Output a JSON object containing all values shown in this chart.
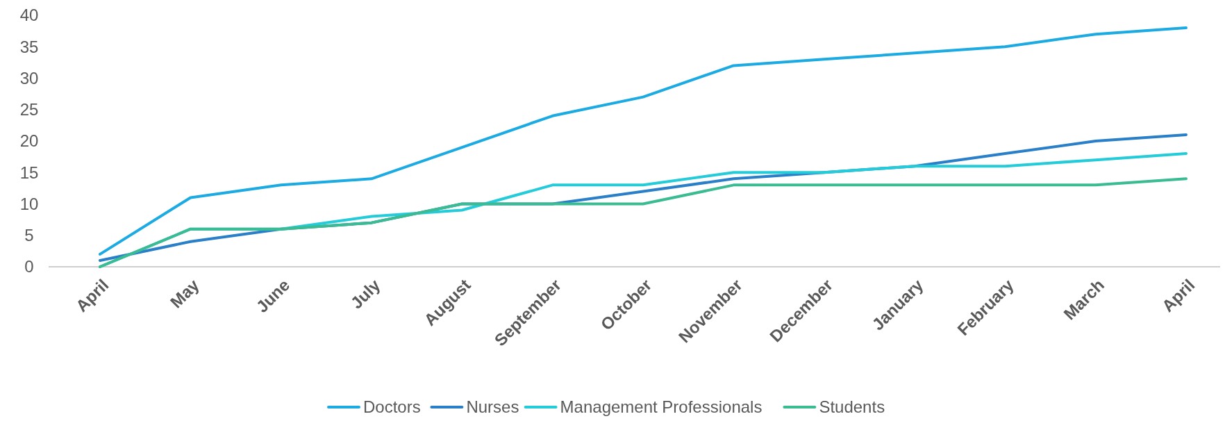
{
  "chart_data": {
    "type": "line",
    "categories": [
      "April",
      "May",
      "June",
      "July",
      "August",
      "September",
      "October",
      "November",
      "December",
      "January",
      "February",
      "March",
      "April"
    ],
    "series": [
      {
        "name": "Doctors",
        "color": "#1caae2",
        "values": [
          2,
          11,
          13,
          14,
          19,
          24,
          27,
          32,
          33,
          34,
          35,
          37,
          38
        ]
      },
      {
        "name": "Nurses",
        "color": "#2a7fc9",
        "values": [
          1,
          4,
          6,
          7,
          10,
          10,
          12,
          14,
          15,
          16,
          18,
          20,
          21
        ]
      },
      {
        "name": "Management Professionals",
        "color": "#24cbd8",
        "values": [
          0,
          6,
          6,
          8,
          9,
          13,
          13,
          15,
          15,
          16,
          16,
          17,
          18
        ]
      },
      {
        "name": "Students",
        "color": "#3bbb92",
        "values": [
          0,
          6,
          6,
          7,
          10,
          10,
          10,
          13,
          13,
          13,
          13,
          13,
          14
        ]
      }
    ],
    "ylim": [
      0,
      40
    ],
    "yticks": [
      0,
      5,
      10,
      15,
      20,
      25,
      30,
      35,
      40
    ],
    "grid": false,
    "legend": "bottom",
    "marker": "none",
    "line_style": "solid"
  }
}
